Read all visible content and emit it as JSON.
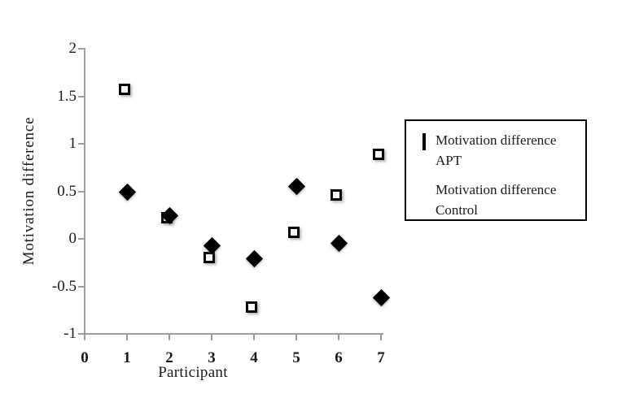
{
  "chart_data": {
    "type": "scatter",
    "title": "",
    "xlabel": "Participant",
    "ylabel": "Motivation difference",
    "xlim": [
      0,
      7
    ],
    "ylim": [
      -1,
      2
    ],
    "x_ticks": [
      0,
      1,
      2,
      3,
      4,
      5,
      6,
      7
    ],
    "x_tick_labels": [
      "0",
      "1",
      "2",
      "3",
      "4",
      "5",
      "6",
      "7"
    ],
    "y_ticks": [
      2,
      1.5,
      1,
      0.5,
      0,
      -0.5,
      -1
    ],
    "y_tick_labels": [
      "2",
      "1.5",
      "1",
      "0.5",
      "0",
      "-0.5",
      "-1"
    ],
    "grid": false,
    "legend_position": "right-outside",
    "x": [
      1,
      2,
      3,
      4,
      5,
      6,
      7
    ],
    "series": [
      {
        "name": "Motivation difference APT",
        "marker": "open-square",
        "values": [
          1.55,
          0.2,
          -0.22,
          -0.74,
          0.04,
          0.44,
          0.86
        ]
      },
      {
        "name": "Motivation difference Control",
        "marker": "filled-diamond",
        "values": [
          0.49,
          0.24,
          -0.07,
          -0.21,
          0.55,
          -0.05,
          -0.62
        ]
      }
    ],
    "colors": {
      "axis": "#9c9c9c",
      "marker": "#000000",
      "legend_border": "#000000",
      "background": "#ffffff"
    }
  }
}
